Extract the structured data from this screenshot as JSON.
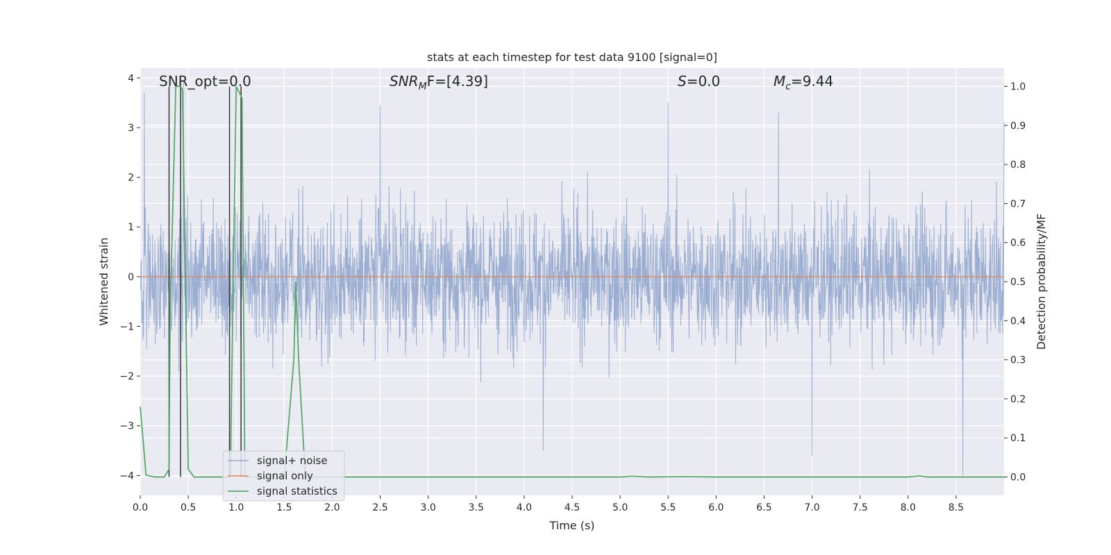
{
  "chart_data": {
    "type": "line",
    "title": "stats at each timestep for test data 9100 [signal=0]",
    "xlabel": "Time (s)",
    "ylabel_left": "Whitened strain",
    "ylabel_right": "Detection probability/MF",
    "xlim": [
      0.0,
      9.0
    ],
    "ylim_left": [
      -4.4,
      4.2
    ],
    "ylim_right": [
      -0.047,
      1.047
    ],
    "x_ticks": [
      0.0,
      0.5,
      1.0,
      1.5,
      2.0,
      2.5,
      3.0,
      3.5,
      4.0,
      4.5,
      5.0,
      5.5,
      6.0,
      6.5,
      7.0,
      7.5,
      8.0,
      8.5
    ],
    "x_tick_labels": [
      "0.0",
      "0.5",
      "1.0",
      "1.5",
      "2.0",
      "2.5",
      "3.0",
      "3.5",
      "4.0",
      "4.5",
      "5.0",
      "5.5",
      "6.0",
      "6.5",
      "7.0",
      "7.5",
      "8.0",
      "8.5"
    ],
    "y_left_ticks": [
      -4,
      -3,
      -2,
      -1,
      0,
      1,
      2,
      3,
      4
    ],
    "y_left_tick_labels": [
      "−4",
      "−3",
      "−2",
      "−1",
      "0",
      "1",
      "2",
      "3",
      "4"
    ],
    "y_right_ticks": [
      0.0,
      0.1,
      0.2,
      0.3,
      0.4,
      0.5,
      0.6,
      0.7,
      0.8,
      0.9,
      1.0
    ],
    "y_right_tick_labels": [
      "0.0",
      "0.1",
      "0.2",
      "0.3",
      "0.4",
      "0.5",
      "0.6",
      "0.7",
      "0.8",
      "0.9",
      "1.0"
    ],
    "grid": true,
    "annotations": {
      "snr_opt": "SNR_opt=0.0",
      "snr_mf_base": "SNR",
      "snr_mf_sub": "M",
      "snr_mf_rest": "F=[4.39]",
      "s_label": "S",
      "s_rest": "=0.0",
      "mc_base": "M",
      "mc_sub": "c",
      "mc_rest": "=9.44"
    },
    "legend_position": "lower-left",
    "series": [
      {
        "name": "signal+ noise",
        "color": "#4c72b0",
        "axis": "left",
        "kind": "noise",
        "amplitude_envelope": {
          "typical_low": -2.2,
          "typical_high": 2.3,
          "max": 4.0,
          "min": -4.0
        },
        "notable_peaks": [
          [
            0.04,
            3.7
          ],
          [
            0.45,
            3.9
          ],
          [
            1.05,
            3.2
          ],
          [
            2.5,
            3.45
          ],
          [
            5.5,
            3.5
          ],
          [
            6.65,
            3.3
          ],
          [
            8.57,
            -4.0
          ],
          [
            7.0,
            -3.6
          ],
          [
            4.2,
            -3.5
          ],
          [
            9.0,
            3.1
          ]
        ]
      },
      {
        "name": "signal only",
        "color": "#dd8452",
        "axis": "left",
        "x": [
          0.0,
          9.0
        ],
        "y": [
          0.0,
          0.0
        ]
      },
      {
        "name": "signal statistics",
        "color": "#55a868",
        "axis": "right",
        "x": [
          0.0,
          0.06,
          0.15,
          0.25,
          0.3,
          0.31,
          0.37,
          0.42,
          0.44,
          0.5,
          0.56,
          0.65,
          0.85,
          0.94,
          0.95,
          1.0,
          1.06,
          1.09,
          1.2,
          1.5,
          1.6,
          1.62,
          1.65,
          1.72,
          1.85,
          2.5,
          3.5,
          4.5,
          5.0,
          5.12,
          5.3,
          5.7,
          6.0,
          7.0,
          8.0,
          8.12,
          8.2,
          9.0
        ],
        "y": [
          0.18,
          0.005,
          0.0,
          0.0,
          0.02,
          0.4,
          1.0,
          1.0,
          0.99,
          0.02,
          0.0,
          0.0,
          0.0,
          0.0,
          0.2,
          1.0,
          0.97,
          0.0,
          0.0,
          0.0,
          0.3,
          0.5,
          0.3,
          0.0,
          0.0,
          0.0,
          0.0,
          0.0,
          0.0,
          0.002,
          0.0,
          0.001,
          0.0,
          0.0,
          0.0,
          0.003,
          0.0,
          0.0
        ]
      }
    ],
    "vertical_markers": [
      0.3,
      0.42,
      0.93,
      1.05
    ]
  }
}
